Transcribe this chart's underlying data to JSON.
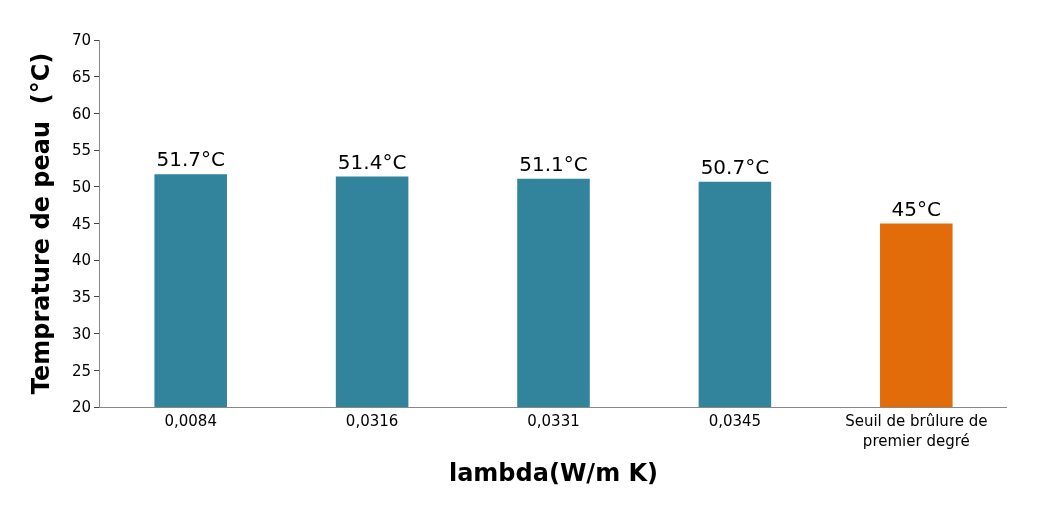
{
  "chart_data": {
    "type": "bar",
    "xlabel": "lambda(W/m K)",
    "ylabel": "Temprature de peau  (°C)",
    "categories": [
      "0,0084",
      "0,0316",
      "0,0331",
      "0,0345",
      "Seuil de brûlure de premier degré"
    ],
    "values": [
      51.7,
      51.4,
      51.1,
      50.7,
      45
    ],
    "colors": [
      "#31849b",
      "#31849b",
      "#31849b",
      "#31849b",
      "#e36c0a"
    ],
    "value_labels": [
      "51.7°C",
      "51.4°C",
      "51.1°C",
      "50.7°C",
      "45°C"
    ],
    "ylim": [
      20,
      70
    ],
    "yticks": [
      20,
      25,
      30,
      35,
      40,
      45,
      50,
      55,
      60,
      65,
      70
    ]
  }
}
